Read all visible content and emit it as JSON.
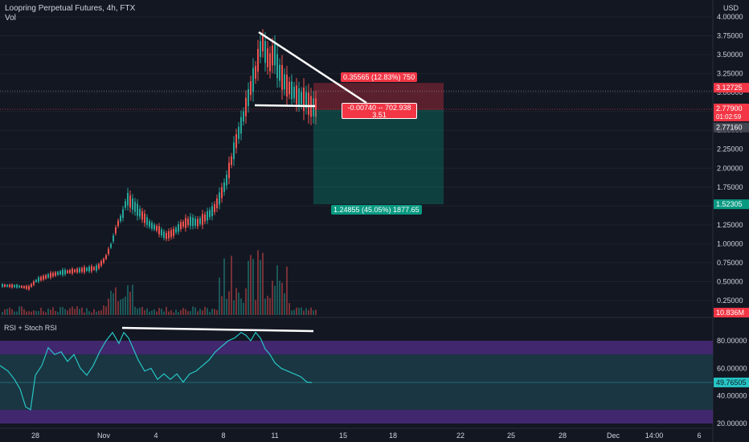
{
  "header": {
    "title": "Loopring Perpetual Futures, 4h, FTX",
    "volume_label": "Vol",
    "indicator_label": "RSI + Stoch RSI",
    "currency": "USD"
  },
  "chart_data": [
    {
      "type": "candlestick",
      "title": "Loopring Perpetual Futures, 4h, FTX",
      "y_axis": {
        "unit": "USD",
        "range": [
          0.2,
          4.0
        ],
        "ticks": [
          "4.00000",
          "3.75000",
          "3.50000",
          "3.25000",
          "3.00000",
          "2.75000",
          "2.50000",
          "2.25000",
          "2.00000",
          "1.75000",
          "1.50000",
          "1.25000",
          "1.00000",
          "0.75000",
          "0.50000",
          "0.25000"
        ]
      },
      "x_axis": {
        "ticks": [
          "28",
          "Nov",
          "4",
          "8",
          "11",
          "15",
          "18",
          "22",
          "25",
          "28",
          "Dec",
          "14:00",
          "6"
        ]
      },
      "price_labels": {
        "target": "3.12725",
        "last_price": "2.77900",
        "countdown": "01:02:59",
        "entry": "2.77160",
        "stop": "1.52305",
        "volume": "10.836M"
      },
      "position_tool": {
        "upper_label": "0.35565 (12.83%) 750",
        "center_line1": "-0.00740 -- 702.938",
        "center_line2": "3.51",
        "lower_label": "1.24855 (45.05%) 1877.65",
        "upper_price": 3.12725,
        "entry_price": 2.7716,
        "lower_price": 1.52305
      },
      "trendlines": [
        {
          "name": "descending-resistance",
          "from": {
            "date": "Nov 9",
            "price": 3.78
          },
          "to": {
            "date": "Nov 14",
            "price": 2.9
          }
        },
        {
          "name": "support",
          "from": {
            "date": "Nov 9",
            "price": 2.85
          },
          "to": {
            "date": "Nov 14",
            "price": 2.81
          }
        }
      ],
      "colors": {
        "up": "#26a69a",
        "down": "#ef5350",
        "risk": "#f23645",
        "reward": "#089981"
      }
    },
    {
      "type": "line",
      "title": "RSI + Stoch RSI",
      "y_axis": {
        "ticks": [
          "80.00000",
          "60.00000",
          "40.00000",
          "20.00000"
        ],
        "range": [
          15,
          95
        ]
      },
      "last_value": "49.76505",
      "bands": [
        {
          "from": 20,
          "to": 30,
          "color": "#4a2a7a"
        },
        {
          "from": 30,
          "to": 70,
          "color": "#1c3a46"
        },
        {
          "from": 70,
          "to": 80,
          "color": "#4a2a7a"
        }
      ],
      "trendline": {
        "name": "rsi-divergence"
      },
      "color": "#26c6c6"
    }
  ]
}
